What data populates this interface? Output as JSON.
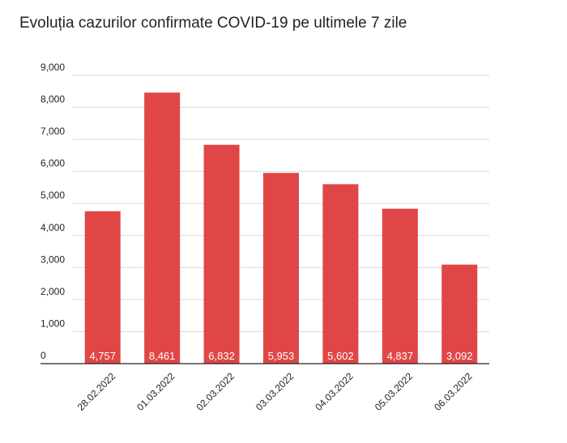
{
  "chart_data": {
    "type": "bar",
    "title": "Evoluția cazurilor confirmate COVID-19 pe ultimele 7 zile",
    "categories": [
      "28.02.2022",
      "01.03.2022",
      "02.03.2022",
      "03.03.2022",
      "04.03.2022",
      "05.03.2022",
      "06.03.2022"
    ],
    "values": [
      4757,
      8461,
      6832,
      5953,
      5602,
      4837,
      3092
    ],
    "data_labels": [
      "4,757",
      "8,461",
      "6,832",
      "5,953",
      "5,602",
      "4,837",
      "3,092"
    ],
    "y_ticks": [
      0,
      1000,
      2000,
      3000,
      4000,
      5000,
      6000,
      7000,
      8000,
      9000
    ],
    "y_tick_labels": [
      "0",
      "1,000",
      "2,000",
      "3,000",
      "4,000",
      "5,000",
      "6,000",
      "7,000",
      "8,000",
      "9,000"
    ],
    "ylim": [
      0,
      9000
    ],
    "xlabel": "",
    "ylabel": "",
    "grid": true,
    "legend": "none",
    "colors": {
      "bar": "#E04646",
      "grid": "#d9d9d9",
      "axis": "#222222"
    }
  }
}
